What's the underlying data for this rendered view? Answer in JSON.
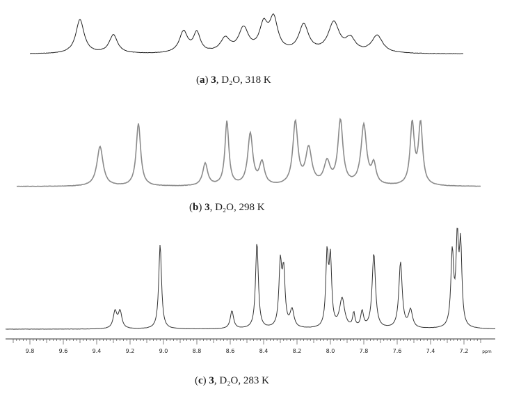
{
  "chart_data": [
    {
      "type": "line",
      "caption": {
        "letter": "a",
        "compound": "3",
        "rest": ", D₂O, 318 K"
      },
      "xlim": [
        9.9,
        7.1
      ],
      "baseline": 0.02,
      "peaks": [
        {
          "x": 9.5,
          "h": 0.74,
          "w": 0.03
        },
        {
          "x": 9.3,
          "h": 0.4,
          "w": 0.03
        },
        {
          "x": 8.88,
          "h": 0.46,
          "w": 0.03
        },
        {
          "x": 8.8,
          "h": 0.42,
          "w": 0.025
        },
        {
          "x": 8.63,
          "h": 0.3,
          "w": 0.035
        },
        {
          "x": 8.52,
          "h": 0.52,
          "w": 0.035
        },
        {
          "x": 8.4,
          "h": 0.56,
          "w": 0.03
        },
        {
          "x": 8.34,
          "h": 0.7,
          "w": 0.03
        },
        {
          "x": 8.16,
          "h": 0.6,
          "w": 0.035
        },
        {
          "x": 7.98,
          "h": 0.65,
          "w": 0.04
        },
        {
          "x": 7.88,
          "h": 0.28,
          "w": 0.035
        },
        {
          "x": 7.72,
          "h": 0.38,
          "w": 0.04
        }
      ]
    },
    {
      "type": "line",
      "caption": {
        "letter": "b",
        "compound": "3",
        "rest": ", D₂O, 298 K"
      },
      "xlim": [
        9.9,
        7.1
      ],
      "baseline": 0.0,
      "peaks": [
        {
          "x": 9.38,
          "h": 0.57,
          "w": 0.022
        },
        {
          "x": 9.15,
          "h": 0.9,
          "w": 0.016
        },
        {
          "x": 8.75,
          "h": 0.32,
          "w": 0.018
        },
        {
          "x": 8.62,
          "h": 0.92,
          "w": 0.014
        },
        {
          "x": 8.48,
          "h": 0.74,
          "w": 0.018
        },
        {
          "x": 8.41,
          "h": 0.32,
          "w": 0.018
        },
        {
          "x": 8.21,
          "h": 0.9,
          "w": 0.018
        },
        {
          "x": 8.13,
          "h": 0.52,
          "w": 0.022
        },
        {
          "x": 8.02,
          "h": 0.32,
          "w": 0.022
        },
        {
          "x": 7.94,
          "h": 0.92,
          "w": 0.018
        },
        {
          "x": 7.8,
          "h": 0.86,
          "w": 0.02
        },
        {
          "x": 7.74,
          "h": 0.28,
          "w": 0.016
        },
        {
          "x": 7.51,
          "h": 0.88,
          "w": 0.015
        },
        {
          "x": 7.46,
          "h": 0.88,
          "w": 0.015
        }
      ]
    },
    {
      "type": "line",
      "caption": {
        "letter": "c",
        "compound": "3",
        "rest": ", D₂O, 283 K"
      },
      "xlim": [
        9.9,
        7.1
      ],
      "xlabel": "ppm",
      "ticks": [
        "9.8",
        "9.6",
        "9.4",
        "9.2",
        "9.0",
        "8.8",
        "8.6",
        "8.4",
        "8.2",
        "8.0",
        "7.8",
        "7.6",
        "7.4",
        "7.2"
      ],
      "baseline": 0.0,
      "peaks": [
        {
          "x": 9.29,
          "h": 0.19,
          "w": 0.013
        },
        {
          "x": 9.26,
          "h": 0.19,
          "w": 0.013
        },
        {
          "x": 9.02,
          "h": 0.95,
          "w": 0.01
        },
        {
          "x": 8.59,
          "h": 0.2,
          "w": 0.012
        },
        {
          "x": 8.44,
          "h": 0.97,
          "w": 0.01
        },
        {
          "x": 8.3,
          "h": 0.7,
          "w": 0.01
        },
        {
          "x": 8.28,
          "h": 0.6,
          "w": 0.01
        },
        {
          "x": 8.23,
          "h": 0.2,
          "w": 0.014
        },
        {
          "x": 8.02,
          "h": 0.8,
          "w": 0.009
        },
        {
          "x": 8.0,
          "h": 0.74,
          "w": 0.009
        },
        {
          "x": 7.93,
          "h": 0.33,
          "w": 0.018
        },
        {
          "x": 7.86,
          "h": 0.16,
          "w": 0.008
        },
        {
          "x": 7.81,
          "h": 0.18,
          "w": 0.01
        },
        {
          "x": 7.74,
          "h": 0.84,
          "w": 0.012
        },
        {
          "x": 7.58,
          "h": 0.74,
          "w": 0.012
        },
        {
          "x": 7.52,
          "h": 0.2,
          "w": 0.014
        },
        {
          "x": 7.27,
          "h": 0.83,
          "w": 0.01
        },
        {
          "x": 7.24,
          "h": 0.94,
          "w": 0.009
        },
        {
          "x": 7.22,
          "h": 0.88,
          "w": 0.009
        }
      ]
    }
  ]
}
